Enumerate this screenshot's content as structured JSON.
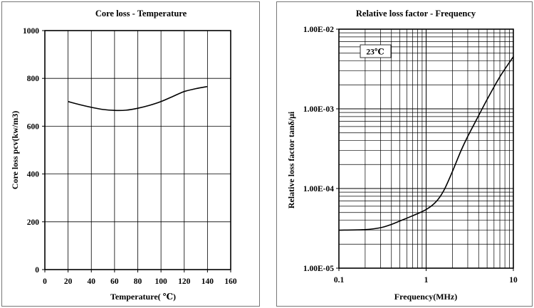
{
  "chart_data": [
    {
      "type": "line",
      "title": "Core loss - Temperature",
      "xlabel": "Temperature( ℃)",
      "ylabel": "Core loss pcv(kw/m3)",
      "xlim": [
        0,
        160
      ],
      "ylim": [
        0,
        1000
      ],
      "xticks": [
        "0",
        "20",
        "40",
        "60",
        "80",
        "100",
        "120",
        "140",
        "160"
      ],
      "yticks": [
        "0",
        "200",
        "400",
        "600",
        "800",
        "1000"
      ],
      "grid": true,
      "series": [
        {
          "x": [
            20,
            30,
            40,
            50,
            60,
            70,
            80,
            90,
            100,
            110,
            120,
            130,
            140
          ],
          "y": [
            703,
            690,
            679,
            670,
            666,
            667,
            675,
            687,
            703,
            724,
            745,
            757,
            766
          ]
        }
      ]
    },
    {
      "type": "line",
      "title": "Relative loss factor - Frequency",
      "xlabel": "Frequency(MHz)",
      "ylabel": "Relative loss factor tanδ/μi",
      "xscale": "log",
      "yscale": "log",
      "xlim": [
        0.1,
        10
      ],
      "ylim": [
        1e-05,
        0.01
      ],
      "xticks": [
        "0.1",
        "1",
        "10"
      ],
      "yticks": [
        "1.00E-05",
        "1.00E-04",
        "1.00E-03",
        "1.00E-02"
      ],
      "grid": true,
      "annotation": "23℃",
      "series": [
        {
          "x": [
            0.1,
            0.2,
            0.3,
            0.4,
            0.5,
            0.7,
            1.0,
            1.3,
            1.6,
            2.0,
            2.5,
            3.0,
            4.0,
            5.0,
            7.0,
            10.0
          ],
          "y": [
            3e-05,
            3.05e-05,
            3.22e-05,
            3.54e-05,
            3.91e-05,
            4.55e-05,
            5.45e-05,
            6.83e-05,
            9.51e-05,
            0.000163,
            0.000295,
            0.000451,
            0.000822,
            0.00131,
            0.00252,
            0.00451
          ]
        }
      ]
    }
  ]
}
